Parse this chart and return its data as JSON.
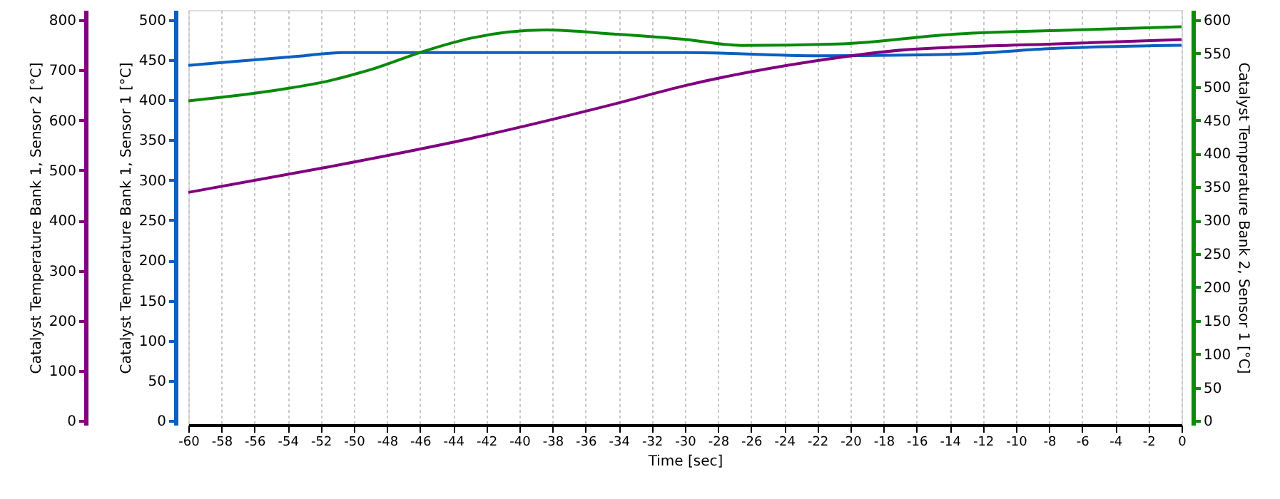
{
  "chart_data": {
    "type": "line",
    "xlabel": "Time [sec]",
    "ylabel": "Catalyst Temperature Bank 1, Sensor 1 [°C]",
    "y2label": "Catalyst Temperature Bank 2, Sensor 1 [°C]",
    "y3label": "Catalyst Temperature Bank 1, Sensor 2 [°C]",
    "xlim": [
      -60,
      0
    ],
    "xticks": [
      -60,
      -58,
      -56,
      -54,
      -52,
      -50,
      -48,
      -46,
      -44,
      -42,
      -40,
      -38,
      -36,
      -34,
      -32,
      -30,
      -28,
      -26,
      -24,
      -22,
      -20,
      -18,
      -16,
      -14,
      -12,
      -10,
      -8,
      -6,
      -4,
      -2,
      0
    ],
    "ylim": [
      -5,
      512
    ],
    "yticks": [
      0,
      50,
      100,
      150,
      200,
      250,
      300,
      350,
      400,
      450,
      500
    ],
    "y2lim": [
      -6,
      615
    ],
    "y2ticks": [
      0,
      50,
      100,
      150,
      200,
      250,
      300,
      350,
      400,
      450,
      500,
      550,
      600
    ],
    "y3lim": [
      -8,
      820
    ],
    "y3ticks": [
      0,
      100,
      200,
      300,
      400,
      500,
      600,
      700,
      800
    ],
    "grid": "x",
    "marker": "none",
    "line_style": "solid",
    "series": [
      {
        "color": "#0b5fbf",
        "axis": "y",
        "x": [
          -60,
          -53,
          -50.7,
          -40,
          -30,
          -22,
          -13.6,
          -7.8,
          0
        ],
        "values": [
          443,
          455,
          459,
          459,
          459,
          455,
          457,
          464,
          468
        ]
      },
      {
        "color": "#0a8a0a",
        "axis": "y2",
        "x": [
          -60,
          -54.4,
          -51.5,
          -48.7,
          -45.8,
          -42.9,
          -38.4,
          -34.3,
          -30,
          -26.6,
          -20.8,
          -13.6,
          -6.5,
          0
        ],
        "values": [
          479,
          496,
          509,
          528,
          553,
          573,
          585,
          579,
          571,
          562,
          564,
          579,
          585,
          590
        ]
      },
      {
        "color": "#800080",
        "axis": "y3",
        "x": [
          -60,
          -51.5,
          -42.9,
          -34.3,
          -30,
          -22.2,
          -16.5,
          -7.8,
          0
        ],
        "values": [
          456,
          507,
          564,
          632,
          669,
          718,
          741,
          752,
          761
        ]
      }
    ]
  }
}
